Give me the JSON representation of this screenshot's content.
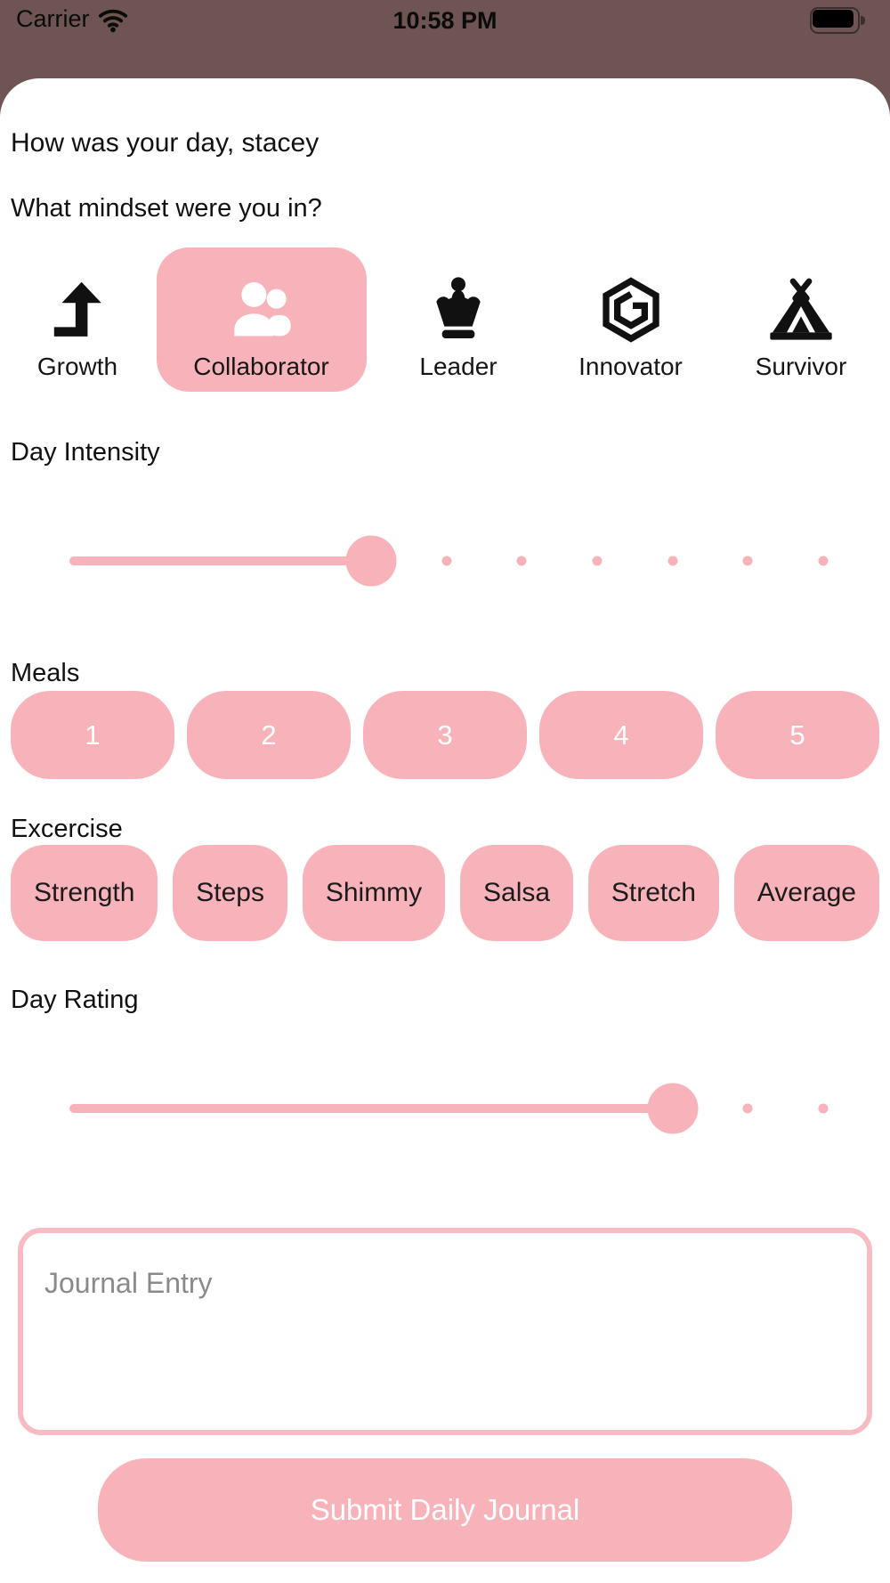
{
  "status_bar": {
    "carrier": "Carrier",
    "time": "10:58 PM",
    "battery_level": "full"
  },
  "header": {
    "greeting": "How was your day, stacey",
    "mindset_question": "What mindset were you in?"
  },
  "mindsets": {
    "selected": "Collaborator",
    "items": [
      {
        "label": "Growth",
        "icon": "growth-arrow-icon",
        "selected": false
      },
      {
        "label": "Collaborator",
        "icon": "people-icon",
        "selected": true
      },
      {
        "label": "Leader",
        "icon": "crown-icon",
        "selected": false
      },
      {
        "label": "Innovator",
        "icon": "cube-icon",
        "selected": false
      },
      {
        "label": "Survivor",
        "icon": "tent-icon",
        "selected": false
      }
    ]
  },
  "day_intensity": {
    "label": "Day Intensity",
    "value": 4,
    "steps_total": 10
  },
  "meals": {
    "label": "Meals",
    "options": [
      "1",
      "2",
      "3",
      "4",
      "5"
    ]
  },
  "exercise": {
    "label": "Excercise",
    "options": [
      "Strength",
      "Steps",
      "Shimmy",
      "Salsa",
      "Stretch",
      "Average"
    ]
  },
  "day_rating": {
    "label": "Day Rating",
    "value": 8,
    "steps_total": 10
  },
  "journal": {
    "placeholder": "Journal Entry",
    "value": ""
  },
  "submit": {
    "label": "Submit Daily Journal"
  },
  "colors": {
    "accent_pink": "#f8b3ba",
    "status_bar_bg": "#6f5454",
    "placeholder_gray": "#8a8a8a"
  }
}
